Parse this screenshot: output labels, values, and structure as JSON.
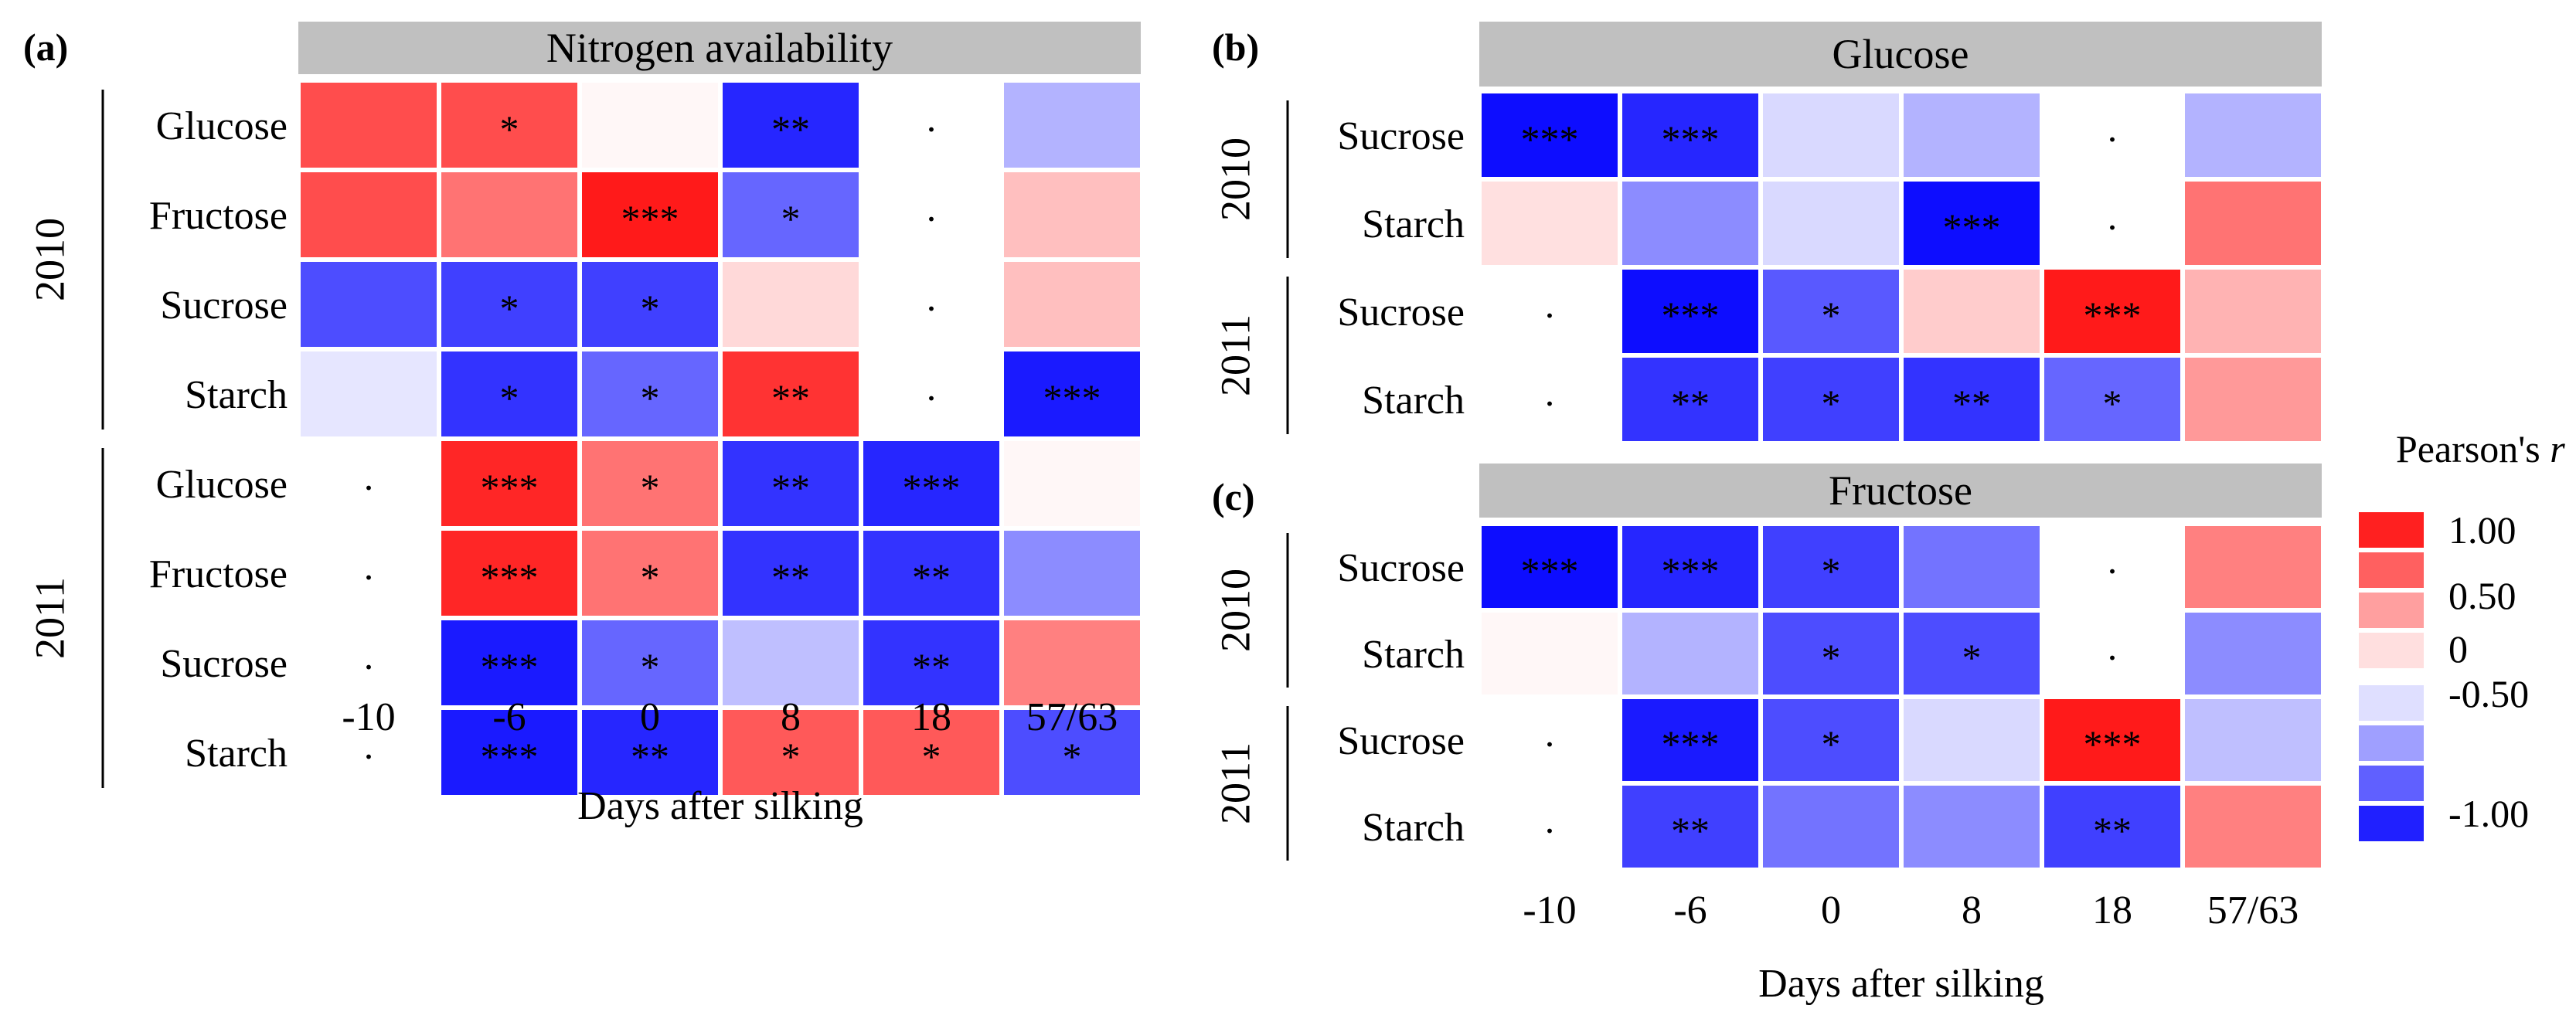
{
  "figure": {
    "xlabel": "Days after silking",
    "x_ticks": [
      "-10",
      "-6",
      "0",
      "8",
      "18",
      "57/63"
    ],
    "colors": {
      "neg_strong": "#0000ff",
      "neutral": "#ffffff",
      "pos_strong": "#ff0000",
      "strip_bg": "#c0c0c0",
      "grid_line": "#ffffff"
    }
  },
  "legend": {
    "title_prefix": "Pearson's ",
    "title_var": "r",
    "labels": [
      "1.00",
      "0.50",
      "0",
      "-0.50",
      "-1.00"
    ],
    "bins": [
      0.875,
      0.625,
      0.375,
      0.125,
      -0.125,
      -0.375,
      -0.625,
      -0.875
    ]
  },
  "chart_data": [
    {
      "type": "heatmap",
      "panel": "(a)",
      "title": "Nitrogen availability",
      "xlabel": "Days after silking",
      "x": [
        "-10",
        "-6",
        "0",
        "8",
        "18",
        "57/63"
      ],
      "value_range": [
        -1,
        1
      ],
      "groups": [
        {
          "year": "2010",
          "rows": [
            {
              "label": "Glucose",
              "values": [
                0.7,
                0.7,
                0.03,
                -0.85,
                null,
                -0.3
              ],
              "sig": [
                "",
                "*",
                "",
                "**",
                ".",
                ""
              ]
            },
            {
              "label": "Fructose",
              "values": [
                0.7,
                0.55,
                0.9,
                -0.6,
                null,
                0.25
              ],
              "sig": [
                "",
                "",
                "***",
                "*",
                ".",
                ""
              ]
            },
            {
              "label": "Sucrose",
              "values": [
                -0.7,
                -0.75,
                -0.75,
                0.15,
                null,
                0.25
              ],
              "sig": [
                "",
                "*",
                "*",
                "",
                ".",
                ""
              ]
            },
            {
              "label": "Starch",
              "values": [
                -0.1,
                -0.8,
                -0.6,
                0.8,
                null,
                -0.9
              ],
              "sig": [
                "",
                "*",
                "*",
                "**",
                ".",
                "***"
              ]
            }
          ]
        },
        {
          "year": "2011",
          "rows": [
            {
              "label": "Glucose",
              "values": [
                null,
                0.85,
                0.55,
                -0.8,
                -0.85,
                0.03
              ],
              "sig": [
                ".",
                "***",
                "*",
                "**",
                "***",
                ""
              ]
            },
            {
              "label": "Fructose",
              "values": [
                null,
                0.85,
                0.55,
                -0.8,
                -0.8,
                -0.45
              ],
              "sig": [
                ".",
                "***",
                "*",
                "**",
                "**",
                ""
              ]
            },
            {
              "label": "Sucrose",
              "values": [
                null,
                -0.9,
                -0.6,
                -0.25,
                -0.8,
                0.5
              ],
              "sig": [
                ".",
                "***",
                "*",
                "",
                "**",
                ""
              ]
            },
            {
              "label": "Starch",
              "values": [
                null,
                -0.9,
                -0.85,
                0.65,
                0.65,
                -0.7
              ],
              "sig": [
                ".",
                "***",
                "**",
                "*",
                "*",
                "*"
              ]
            }
          ]
        }
      ]
    },
    {
      "type": "heatmap",
      "panel": "(b)",
      "title": "Glucose",
      "xlabel": "Days after silking",
      "x": [
        "-10",
        "-6",
        "0",
        "8",
        "18",
        "57/63"
      ],
      "value_range": [
        -1,
        1
      ],
      "groups": [
        {
          "year": "2010",
          "rows": [
            {
              "label": "Sucrose",
              "values": [
                -0.95,
                -0.85,
                -0.15,
                -0.3,
                null,
                -0.3
              ],
              "sig": [
                "***",
                "***",
                "",
                "",
                ".",
                ""
              ]
            },
            {
              "label": "Starch",
              "values": [
                0.12,
                -0.45,
                -0.15,
                -0.95,
                null,
                0.55
              ],
              "sig": [
                "",
                "",
                "",
                "***",
                ".",
                ""
              ]
            }
          ]
        },
        {
          "year": "2011",
          "rows": [
            {
              "label": "Sucrose",
              "values": [
                null,
                -0.95,
                -0.65,
                0.2,
                0.9,
                0.3
              ],
              "sig": [
                ".",
                "***",
                "*",
                "",
                "***",
                ""
              ]
            },
            {
              "label": "Starch",
              "values": [
                null,
                -0.8,
                -0.75,
                -0.8,
                -0.6,
                0.4
              ],
              "sig": [
                ".",
                "**",
                "*",
                "**",
                "*",
                ""
              ]
            }
          ]
        }
      ]
    },
    {
      "type": "heatmap",
      "panel": "(c)",
      "title": "Fructose",
      "xlabel": "Days after silking",
      "x": [
        "-10",
        "-6",
        "0",
        "8",
        "18",
        "57/63"
      ],
      "value_range": [
        -1,
        1
      ],
      "groups": [
        {
          "year": "2010",
          "rows": [
            {
              "label": "Sucrose",
              "values": [
                -0.95,
                -0.85,
                -0.75,
                -0.55,
                null,
                0.5
              ],
              "sig": [
                "***",
                "***",
                "*",
                "",
                ".",
                ""
              ]
            },
            {
              "label": "Starch",
              "values": [
                0.03,
                -0.3,
                -0.7,
                -0.7,
                null,
                -0.45
              ],
              "sig": [
                "",
                "",
                "*",
                "*",
                ".",
                ""
              ]
            }
          ]
        },
        {
          "year": "2011",
          "rows": [
            {
              "label": "Sucrose",
              "values": [
                null,
                -0.9,
                -0.7,
                -0.15,
                0.9,
                -0.25
              ],
              "sig": [
                ".",
                "***",
                "*",
                "",
                "***",
                ""
              ]
            },
            {
              "label": "Starch",
              "values": [
                null,
                -0.75,
                -0.55,
                -0.45,
                -0.75,
                0.5
              ],
              "sig": [
                ".",
                "**",
                "",
                "",
                "**",
                ""
              ]
            }
          ]
        }
      ]
    }
  ]
}
